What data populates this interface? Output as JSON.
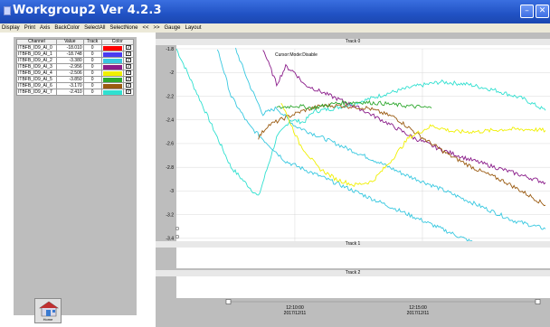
{
  "window": {
    "title": "Workgroup2 Ver 4.2.3",
    "buttons": {
      "minimize": "–",
      "close": "✕"
    }
  },
  "menu": [
    "Display",
    "Print",
    "Axis",
    "BackColor",
    "SelectAll",
    "SelectNone",
    "<<",
    ">>",
    "Gauge",
    "Layout"
  ],
  "channel_table": {
    "headers": [
      "Channel",
      "Value",
      "Track",
      "Color"
    ],
    "rows": [
      {
        "channel": "ITBFB_ID9_AI_0",
        "value": "-18.010",
        "track": "0",
        "color": "#ff0000",
        "checked": true
      },
      {
        "channel": "ITBFB_ID9_AI_1",
        "value": "-18.748",
        "track": "0",
        "color": "#4a3cf0",
        "checked": true
      },
      {
        "channel": "ITBFB_ID9_AI_2",
        "value": "-3.380",
        "track": "0",
        "color": "#38c8e0",
        "checked": true
      },
      {
        "channel": "ITBFB_ID9_AI_3",
        "value": "-2.956",
        "track": "0",
        "color": "#8a1c8a",
        "checked": true
      },
      {
        "channel": "ITBFB_ID9_AI_4",
        "value": "-2.506",
        "track": "0",
        "color": "#f0f000",
        "checked": true
      },
      {
        "channel": "ITBFB_ID9_AI_5",
        "value": "-3.850",
        "track": "0",
        "color": "#2ea82e",
        "checked": true
      },
      {
        "channel": "ITBFB_ID9_AI_6",
        "value": "-3.170",
        "track": "0",
        "color": "#9a5a10",
        "checked": true
      },
      {
        "channel": "ITBFB_ID9_AI_7",
        "value": "-2.410",
        "track": "0",
        "color": "#30e0d0",
        "checked": true
      }
    ]
  },
  "home_button": {
    "label": "Home"
  },
  "tracks": {
    "track0": "Track 0",
    "track1": "Track 1",
    "track2": "Track 2",
    "annotation": "Cursor:Mode:Disable",
    "x_ticks": [
      {
        "time": "12:10:00",
        "date": "2017/12/11"
      },
      {
        "time": "12:15:00",
        "date": "2017/12/11"
      }
    ]
  },
  "chart_data": {
    "type": "line",
    "title": "Track 0",
    "xlabel": "",
    "ylabel": "",
    "ylim": [
      -3.5,
      -1.8
    ],
    "yticks": [
      -1.8,
      -2,
      -2.2,
      -2.4,
      -2.6,
      -2.8,
      -3,
      -3.2,
      -3.4
    ],
    "grid": true,
    "x_ticks": [
      "12:10:00 2017/12/11",
      "12:15:00 2017/12/11"
    ],
    "series": [
      {
        "color": "#30e0d0",
        "x": [
          0,
          30,
          60,
          90,
          110,
          125,
          140,
          150,
          175,
          200,
          230,
          260,
          290,
          320,
          350,
          380,
          405
        ],
        "y": [
          -1.8,
          -2.3,
          -2.8,
          -3.05,
          -2.55,
          -2.4,
          -2.42,
          -2.33,
          -2.3,
          -2.25,
          -2.18,
          -2.12,
          -2.08,
          -2.1,
          -2.15,
          -2.22,
          -2.32
        ]
      },
      {
        "color": "#38c8e0",
        "x": [
          65,
          80,
          95,
          110,
          130,
          160,
          190,
          220,
          250,
          280,
          310,
          340,
          370,
          405
        ],
        "y": [
          -1.8,
          -2.1,
          -2.35,
          -2.3,
          -2.45,
          -2.55,
          -2.65,
          -2.75,
          -2.86,
          -2.95,
          -3.05,
          -3.15,
          -3.25,
          -3.32
        ]
      },
      {
        "color": "#38c8e0",
        "x": [
          45,
          60,
          80,
          100,
          120,
          150,
          180,
          210,
          240,
          270,
          300,
          330,
          350
        ],
        "y": [
          -1.8,
          -2.2,
          -2.45,
          -2.6,
          -2.75,
          -2.85,
          -2.95,
          -3.05,
          -3.15,
          -3.25,
          -3.35,
          -3.45,
          -3.5
        ]
      },
      {
        "color": "#8a1c8a",
        "x": [
          95,
          110,
          120,
          130,
          140,
          170,
          200,
          230,
          260,
          290,
          320,
          350,
          380,
          405
        ],
        "y": [
          -1.8,
          -2.1,
          -1.95,
          -2.0,
          -2.1,
          -2.2,
          -2.3,
          -2.42,
          -2.55,
          -2.65,
          -2.73,
          -2.8,
          -2.87,
          -2.93
        ]
      },
      {
        "color": "#9a5a10",
        "x": [
          90,
          100,
          120,
          140,
          160,
          180,
          210,
          240,
          270,
          300,
          330,
          360,
          390,
          405
        ],
        "y": [
          -2.55,
          -2.45,
          -2.38,
          -2.32,
          -2.28,
          -2.28,
          -2.3,
          -2.38,
          -2.55,
          -2.7,
          -2.82,
          -2.92,
          -3.05,
          -3.12
        ]
      },
      {
        "color": "#f0f000",
        "x": [
          115,
          135,
          155,
          175,
          195,
          215,
          235,
          255,
          280,
          305,
          330,
          360,
          390,
          405
        ],
        "y": [
          -2.25,
          -2.6,
          -2.8,
          -2.9,
          -2.95,
          -2.92,
          -2.75,
          -2.55,
          -2.45,
          -2.5,
          -2.5,
          -2.48,
          -2.48,
          -2.49
        ]
      },
      {
        "color": "#2ea82e",
        "x": [
          110,
          130,
          150,
          175,
          200,
          225,
          250,
          280
        ],
        "y": [
          -2.3,
          -2.28,
          -2.3,
          -2.26,
          -2.25,
          -2.26,
          -2.28,
          -2.3
        ]
      }
    ]
  }
}
